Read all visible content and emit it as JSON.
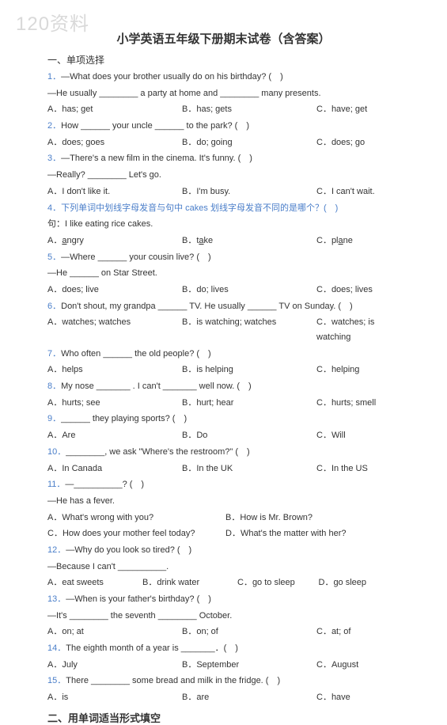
{
  "watermark": "120资料",
  "title": "小学英语五年级下册期末试卷（含答案）",
  "section1": "一、单项选择",
  "section2": "二、用单词适当形式填空",
  "q1": {
    "num": "1．",
    "line1": "—What does your brother usually do on his birthday? (　)",
    "line2": "—He usually ________ a party at home and ________ many presents.",
    "a": "A．has; get",
    "b": "B．has; gets",
    "c": "C．have; get"
  },
  "q2": {
    "num": "2．",
    "text": "How ______ your uncle ______ to the park? (　)",
    "a": "A．does; goes",
    "b": "B．do; going",
    "c": "C．does; go"
  },
  "q3": {
    "num": "3．",
    "line1": "—There's a new film in the cinema. It's funny. (　)",
    "line2": "—Really? ________ Let's go.",
    "a": "A．I don't like it.",
    "b": "B．I'm busy.",
    "c": "C．I can't wait."
  },
  "q4": {
    "num": "4．",
    "line1": "下列单词中划线字母发音与句中 cakes 划线字母发音不同的是哪个？(　)",
    "line2": "句：I like eating rice cakes.",
    "a_pre": "A．",
    "a_u": "a",
    "a_post": "ngry",
    "b_pre": "B．t",
    "b_u": "a",
    "b_post": "ke",
    "c_pre": "C．pl",
    "c_u": "a",
    "c_post": "ne"
  },
  "q5": {
    "num": "5．",
    "line1": "—Where ______ your cousin live? (　)",
    "line2": "—He ______ on Star Street.",
    "a": "A．does; live",
    "b": "B．do; lives",
    "c": "C．does; lives"
  },
  "q6": {
    "num": "6．",
    "text": "Don't shout, my grandpa ______ TV. He usually ______ TV on Sunday. (　)",
    "a": "A．watches; watches",
    "b": "B．is watching; watches",
    "c": "C．watches; is watching"
  },
  "q7": {
    "num": "7．",
    "text": "Who often ______ the old people? (　)",
    "a": "A．helps",
    "b": "B．is helping",
    "c": "C．helping"
  },
  "q8": {
    "num": "8．",
    "text": "My nose _______ . I can't _______ well now. (　)",
    "a": "A．hurts; see",
    "b": "B．hurt; hear",
    "c": "C．hurts; smell"
  },
  "q9": {
    "num": "9．",
    "text": "______ they playing sports? (　)",
    "a": "A．Are",
    "b": "B．Do",
    "c": "C．Will"
  },
  "q10": {
    "num": "10．",
    "text": "________, we ask \"Where's the restroom?\" (　)",
    "a": "A．In Canada",
    "b": "B．In the UK",
    "c": "C．In the US"
  },
  "q11": {
    "num": "11．",
    "line1": "—__________? (　)",
    "line2": "—He has a fever.",
    "a": "A．What's wrong with you?",
    "b": "B．How is Mr. Brown?",
    "c": "C．How does your mother feel today?",
    "d": "D．What's the matter with her?"
  },
  "q12": {
    "num": "12．",
    "line1": "—Why do you look so tired? (　)",
    "line2": "—Because I can't __________.",
    "a": "A．eat sweets",
    "b": "B．drink water",
    "c": "C．go to sleep",
    "d": "D．go sleep"
  },
  "q13": {
    "num": "13．",
    "line1": "—When is your father's birthday? (　)",
    "line2": "—It's ________ the seventh ________ October.",
    "a": "A．on; at",
    "b": "B．on; of",
    "c": "C．at; of"
  },
  "q14": {
    "num": "14．",
    "text": "The eighth month of a year is _______．(　)",
    "a": "A．July",
    "b": "B．September",
    "c": "C．August"
  },
  "q15": {
    "num": "15．",
    "text": "There ________ some bread and milk in the fridge. (　)",
    "a": "A．is",
    "b": "B．are",
    "c": "C．have"
  }
}
